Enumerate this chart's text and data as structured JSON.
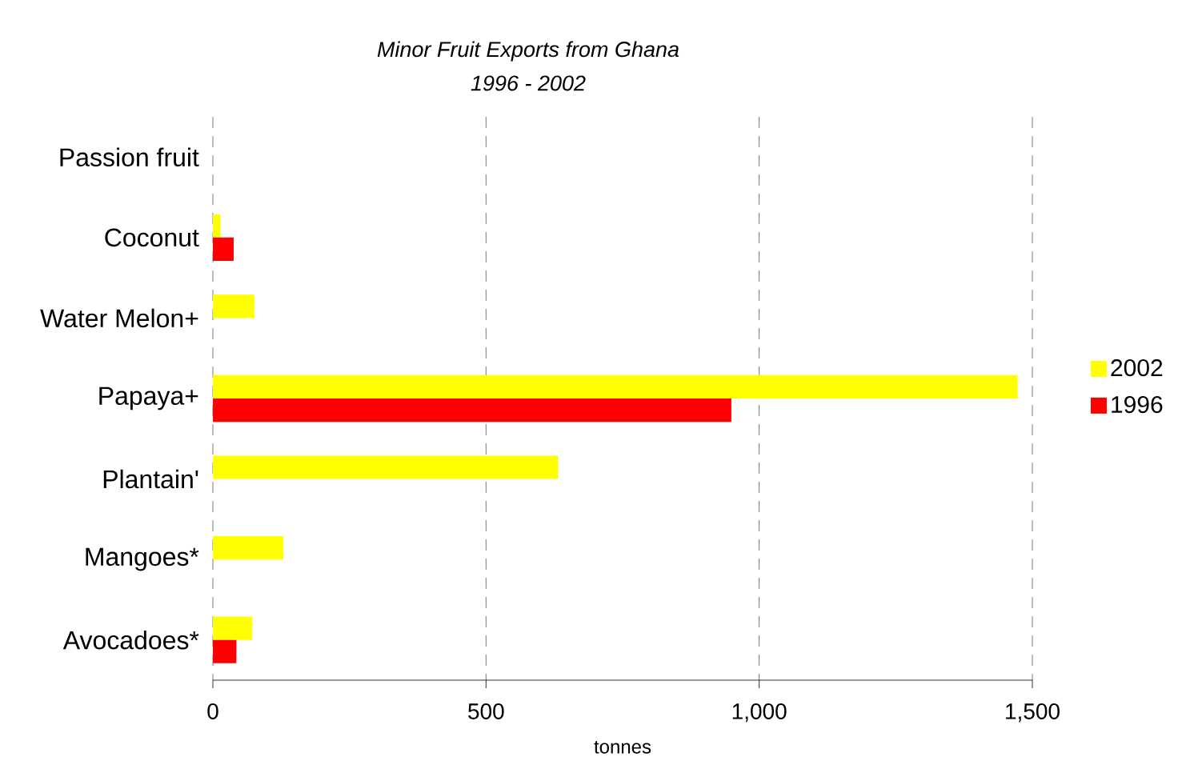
{
  "chart_data": {
    "type": "bar",
    "orientation": "horizontal",
    "title": "Minor Fruit Exports from Ghana",
    "subtitle": "1996 - 2002",
    "xlabel": "tonnes",
    "categories": [
      "Passion fruit",
      "Coconut",
      "Water Melon+",
      "Papaya+",
      "Plantain'",
      "Mangoes*",
      "Avocadoes*"
    ],
    "series": [
      {
        "name": "2002",
        "color": "#ffff00",
        "values": [
          null,
          14,
          76,
          1473,
          632,
          129,
          72
        ]
      },
      {
        "name": "1996",
        "color": "#ff0000",
        "values": [
          null,
          38,
          null,
          949,
          null,
          null,
          43
        ]
      }
    ],
    "xlim": [
      0,
      1500
    ],
    "xticks": [
      0,
      500,
      {
        "value": 1000,
        "label": "1,000"
      },
      {
        "value": 1500,
        "label": "1,500"
      }
    ],
    "grid": "x",
    "legend": "right"
  }
}
